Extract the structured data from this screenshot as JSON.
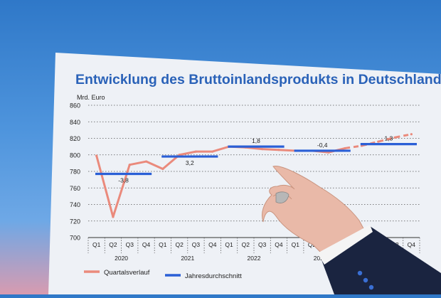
{
  "chart_data": {
    "type": "line",
    "title": "Entwicklung des Bruttoinlandsprodukts in Deutschland",
    "ylabel": "Mrd. Euro",
    "ylim": [
      700,
      860
    ],
    "yticks": [
      "860",
      "840",
      "820",
      "800",
      "780",
      "760",
      "740",
      "720",
      "700"
    ],
    "grid": true,
    "legend_position": "bottom",
    "quarters": [
      "Q1",
      "Q2",
      "Q3",
      "Q4",
      "Q1",
      "Q2",
      "Q3",
      "Q4",
      "Q1",
      "Q2",
      "Q3",
      "Q4",
      "Q1",
      "Q2",
      "Q3",
      "Q4",
      "Q1",
      "Q2",
      "Q3",
      "Q4"
    ],
    "years": [
      "2020",
      "2021",
      "2022",
      "2023",
      ""
    ],
    "series": [
      {
        "name": "Quartalsverlauf",
        "color": "#ea8a7c",
        "values": [
          799,
          725,
          788,
          792,
          783,
          800,
          804,
          804,
          810,
          809,
          807,
          806,
          805,
          805,
          803,
          808,
          811,
          816,
          821,
          825
        ],
        "dashed_from_index": 15
      },
      {
        "name": "Jahresdurchschnitt",
        "color": "#2a5fd6",
        "annual": [
          {
            "year_index": 0,
            "value": 777,
            "label": "-3,8"
          },
          {
            "year_index": 1,
            "value": 798,
            "label": "3,2"
          },
          {
            "year_index": 2,
            "value": 810,
            "label": "1,8"
          },
          {
            "year_index": 3,
            "value": 805,
            "label": "-0,4"
          },
          {
            "year_index": 4,
            "value": 813,
            "label": "1,3"
          },
          {
            "year_index": 5,
            "value": 823,
            "label": "1,5"
          }
        ]
      }
    ]
  },
  "legend": {
    "quarterly": "Quartalsverlauf",
    "annual": "Jahresdurchschnitt"
  }
}
